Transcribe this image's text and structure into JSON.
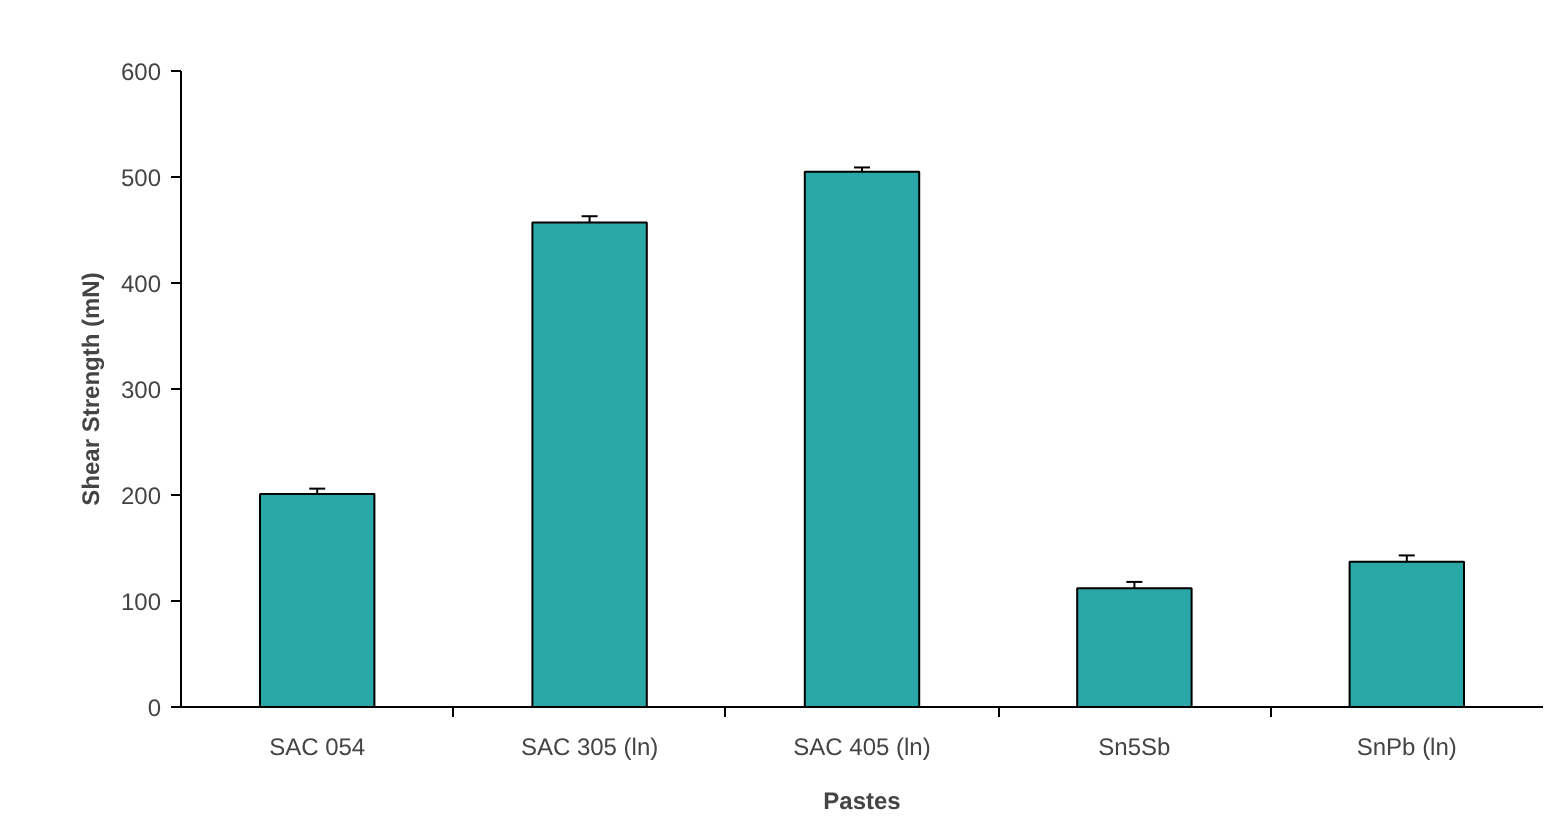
{
  "chart_data": {
    "type": "bar",
    "xlabel": "Pastes",
    "ylabel": "Shear Strength (mN)",
    "categories": [
      "SAC 054",
      "SAC 305 (ln)",
      "SAC 405 (ln)",
      "Sn5Sb",
      "SnPb (ln)"
    ],
    "values": [
      201,
      457,
      505,
      112,
      137
    ],
    "errors": [
      5,
      6,
      4,
      6,
      6
    ],
    "color": "#2aa8a8",
    "ylim": [
      0,
      600
    ],
    "yticks": [
      0,
      100,
      200,
      300,
      400,
      500,
      600
    ],
    "grid": false
  }
}
